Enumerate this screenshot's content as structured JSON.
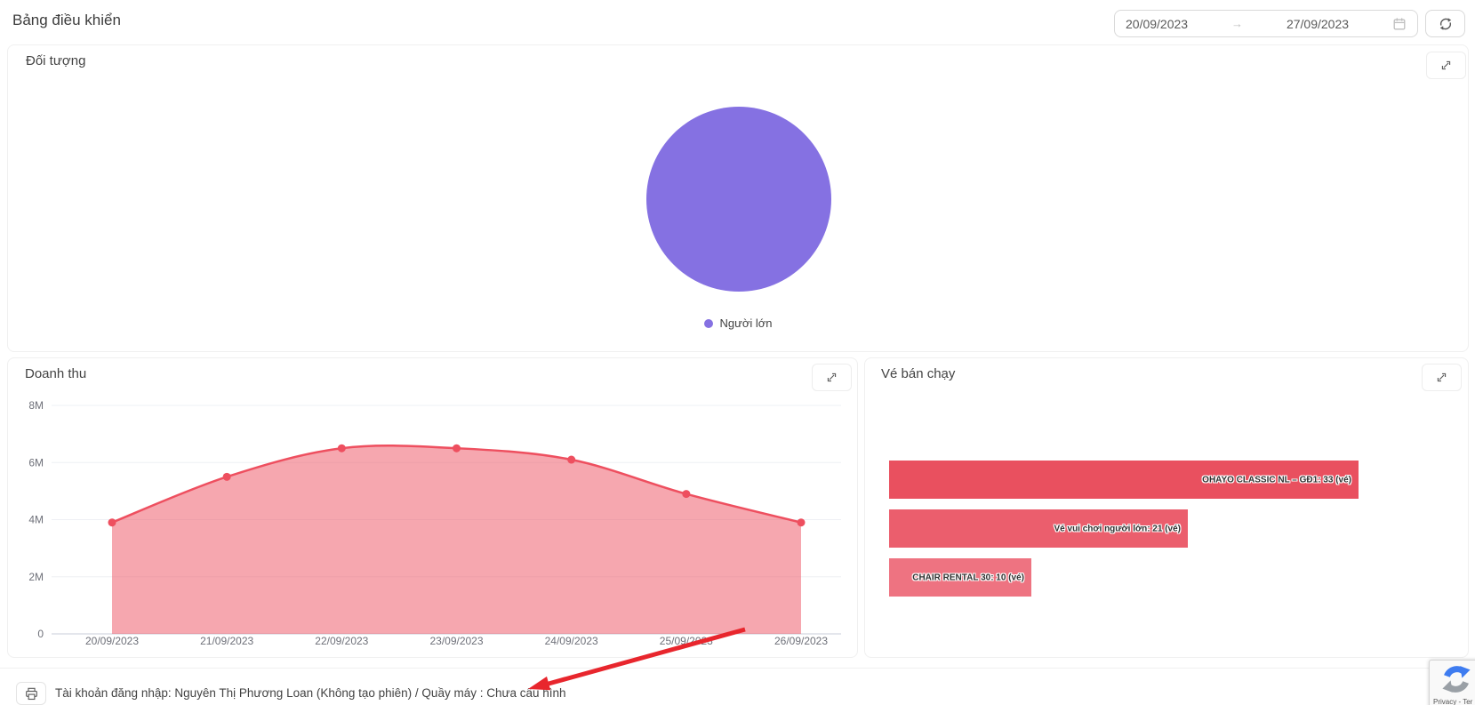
{
  "header": {
    "title": "Bảng điều khiển",
    "date_range": {
      "start": "20/09/2023",
      "end": "27/09/2023",
      "separator": "→"
    }
  },
  "panels": {
    "subjects": {
      "title": "Đối tượng"
    },
    "revenue": {
      "title": "Doanh thu"
    },
    "tickets": {
      "title": "Vé bán chạy"
    }
  },
  "footer": {
    "login_info": "Tài khoản đăng nhập: Nguyên Thị Phương Loan (Không tạo phiên) / Quầy máy : Chưa cấu hình"
  },
  "recaptcha": {
    "label": "Privacy - Ter"
  },
  "colors": {
    "pie_purple": "#8571E2",
    "series_red": "#EE4F5F",
    "annotation_red": "#E8262D"
  },
  "chart_data": [
    {
      "type": "pie",
      "title": "Đối tượng",
      "slices": [
        {
          "label": "Người lớn",
          "value": 100,
          "color": "#8571E2"
        }
      ],
      "legend_position": "bottom"
    },
    {
      "type": "area",
      "title": "Doanh thu",
      "x": [
        "20/09/2023",
        "21/09/2023",
        "22/09/2023",
        "23/09/2023",
        "24/09/2023",
        "25/09/2023",
        "26/09/2023"
      ],
      "series": [
        {
          "name": "Doanh thu",
          "values": [
            3900000,
            5500000,
            6500000,
            6500000,
            6100000,
            4900000,
            3900000
          ]
        }
      ],
      "ylim": [
        0,
        8000000
      ],
      "yticks": [
        {
          "label": "8M",
          "value": 8000000
        },
        {
          "label": "6M",
          "value": 6000000
        },
        {
          "label": "4M",
          "value": 4000000
        },
        {
          "label": "2M",
          "value": 2000000
        },
        {
          "label": "0",
          "value": 0
        }
      ],
      "grid": true,
      "smooth": true,
      "line_color": "#EE4F5F",
      "area_opacity": 0.5
    },
    {
      "type": "bar",
      "title": "Vé bán chạy",
      "orientation": "horizontal",
      "unit": "vé",
      "xlim": [
        0,
        33
      ],
      "items": [
        {
          "name": "OHAYO CLASSIC NL – GĐ1",
          "value": 33,
          "label": "OHAYO CLASSIC NL – GĐ1: 33 (vé)",
          "color": "#E9505F"
        },
        {
          "name": "Vé vui chơi người lớn",
          "value": 21,
          "label": "Vé vui chơi người lớn: 21 (vé)",
          "color": "#EB5E6D"
        },
        {
          "name": "CHAIR RENTAL 30",
          "value": 10,
          "label": "CHAIR RENTAL 30: 10 (vé)",
          "color": "#EE7381"
        }
      ]
    }
  ]
}
